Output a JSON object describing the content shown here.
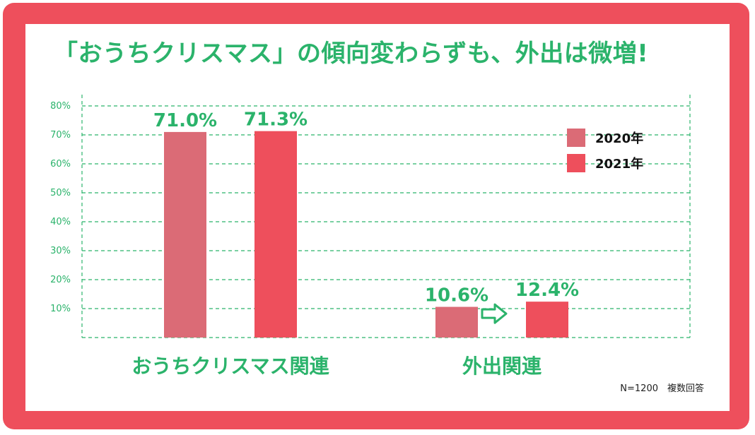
{
  "title": "「おうちクリスマス」の傾向変わらずも、外出は微増!",
  "note": "N=1200　複数回答",
  "colors": {
    "y2020": "#db6b76",
    "y2021": "#ee4f5c",
    "accent": "#2bb36b",
    "frame": "#ee4f5c"
  },
  "arrow_icon": "right-arrow-icon",
  "chart_data": {
    "type": "bar",
    "categories": [
      "おうちクリスマス関連",
      "外出関連"
    ],
    "series": [
      {
        "name": "2020年",
        "values": [
          71.0,
          10.6
        ],
        "labels": [
          "71.0%",
          "10.6%"
        ]
      },
      {
        "name": "2021年",
        "values": [
          71.3,
          12.4
        ],
        "labels": [
          "71.3%",
          "12.4%"
        ]
      }
    ],
    "ylim": [
      0,
      80
    ],
    "yticks": [
      10,
      20,
      30,
      40,
      50,
      60,
      70,
      80
    ],
    "ytick_labels": [
      "10%",
      "20%",
      "30%",
      "40%",
      "50%",
      "60%",
      "70%",
      "80%"
    ],
    "grid": true,
    "legend": "top-right"
  }
}
